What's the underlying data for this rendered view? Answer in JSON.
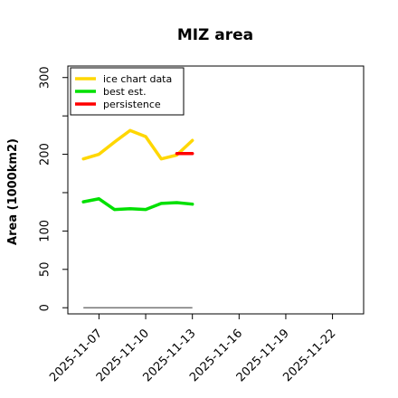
{
  "chart_data": {
    "type": "line",
    "title": "MIZ area",
    "xlabel": "",
    "ylabel": "Area (1000km2)",
    "x": [
      "2025-11-06",
      "2025-11-07",
      "2025-11-08",
      "2025-11-09",
      "2025-11-10",
      "2025-11-11",
      "2025-11-12",
      "2025-11-13"
    ],
    "xlim": [
      "2025-11-05",
      "2025-11-24"
    ],
    "ylim": [
      -8,
      315
    ],
    "yticks": [
      0,
      50,
      100,
      200,
      300
    ],
    "yminor_ticks": [
      150,
      250
    ],
    "xticks": [
      "2025-11-07",
      "2025-11-10",
      "2025-11-13",
      "2025-11-16",
      "2025-11-19",
      "2025-11-22"
    ],
    "grid": false,
    "legend": "top-left",
    "series": [
      {
        "name": "ice chart data",
        "color": "#ffd700",
        "x": [
          "2025-11-06",
          "2025-11-07",
          "2025-11-08",
          "2025-11-09",
          "2025-11-10",
          "2025-11-11",
          "2025-11-12",
          "2025-11-13"
        ],
        "values": [
          194,
          200,
          216,
          231,
          223,
          194,
          199,
          218
        ]
      },
      {
        "name": "best est.",
        "color": "#00e000",
        "x": [
          "2025-11-06",
          "2025-11-07",
          "2025-11-08",
          "2025-11-09",
          "2025-11-10",
          "2025-11-11",
          "2025-11-12",
          "2025-11-13"
        ],
        "values": [
          138,
          142,
          128,
          129,
          128,
          136,
          137,
          135
        ]
      },
      {
        "name": "persistence",
        "color": "#ff0000",
        "x": [
          "2025-11-12",
          "2025-11-13"
        ],
        "values": [
          201,
          201
        ]
      }
    ],
    "baseline": {
      "color": "#777777",
      "x": [
        "2025-11-06",
        "2025-11-13"
      ],
      "values": [
        0,
        0
      ]
    }
  }
}
